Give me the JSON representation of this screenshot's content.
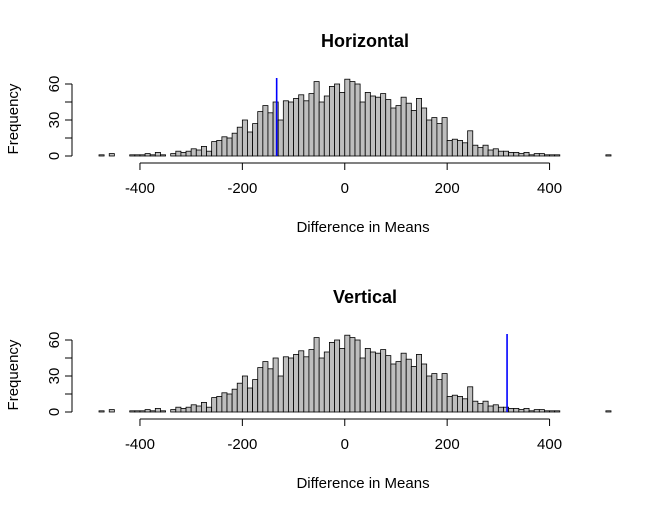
{
  "chart_data": [
    {
      "type": "bar",
      "title": "Horizontal",
      "xlabel": "Difference in Means",
      "ylabel": "Frequency",
      "xlim": [
        -480,
        520
      ],
      "ylim": [
        0,
        65
      ],
      "x_ticks": [
        -400,
        -200,
        0,
        200,
        400
      ],
      "y_ticks": [
        0,
        30,
        60
      ],
      "bin_width": 10,
      "bin_start": -480,
      "values": [
        1,
        0,
        2,
        0,
        0,
        0,
        1,
        1,
        1,
        2,
        1,
        3,
        1,
        0,
        2,
        4,
        3,
        4,
        6,
        5,
        8,
        4,
        12,
        13,
        16,
        15,
        19,
        24,
        30,
        20,
        27,
        37,
        42,
        36,
        45,
        30,
        46,
        45,
        48,
        51,
        46,
        52,
        62,
        45,
        50,
        58,
        60,
        53,
        64,
        62,
        60,
        45,
        53,
        50,
        49,
        52,
        47,
        40,
        42,
        49,
        44,
        38,
        48,
        40,
        30,
        32,
        27,
        32,
        13,
        14,
        13,
        11,
        21,
        9,
        7,
        9,
        5,
        6,
        4,
        4,
        3,
        3,
        2,
        3,
        1,
        2,
        2,
        1,
        1,
        1,
        0,
        0,
        0,
        0,
        0,
        0,
        0,
        0,
        0,
        1,
        0
      ],
      "ref_line_x": -133,
      "ref_line_color": "#0000ff"
    },
    {
      "type": "bar",
      "title": "Vertical",
      "xlabel": "Difference in Means",
      "ylabel": "Frequency",
      "xlim": [
        -480,
        520
      ],
      "ylim": [
        0,
        65
      ],
      "x_ticks": [
        -400,
        -200,
        0,
        200,
        400
      ],
      "y_ticks": [
        0,
        30,
        60
      ],
      "bin_width": 10,
      "bin_start": -480,
      "values": [
        1,
        0,
        2,
        0,
        0,
        0,
        1,
        1,
        1,
        2,
        1,
        3,
        1,
        0,
        2,
        4,
        3,
        4,
        6,
        5,
        8,
        4,
        12,
        13,
        16,
        15,
        19,
        24,
        30,
        20,
        27,
        37,
        42,
        36,
        45,
        30,
        46,
        45,
        48,
        51,
        46,
        52,
        62,
        45,
        50,
        58,
        60,
        53,
        64,
        62,
        60,
        45,
        53,
        50,
        49,
        52,
        47,
        40,
        42,
        49,
        44,
        38,
        48,
        40,
        30,
        32,
        27,
        32,
        13,
        14,
        13,
        11,
        21,
        9,
        7,
        9,
        5,
        6,
        4,
        4,
        3,
        3,
        2,
        3,
        1,
        2,
        2,
        1,
        1,
        1,
        0,
        0,
        0,
        0,
        0,
        0,
        0,
        0,
        0,
        1,
        0
      ],
      "ref_line_x": 317,
      "ref_line_color": "#0000ff"
    }
  ]
}
